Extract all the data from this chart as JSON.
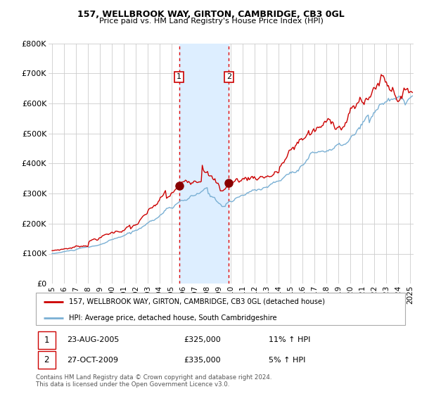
{
  "title1": "157, WELLBROOK WAY, GIRTON, CAMBRIDGE, CB3 0GL",
  "title2": "Price paid vs. HM Land Registry's House Price Index (HPI)",
  "legend_line1": "157, WELLBROOK WAY, GIRTON, CAMBRIDGE, CB3 0GL (detached house)",
  "legend_line2": "HPI: Average price, detached house, South Cambridgeshire",
  "transaction1_date": "23-AUG-2005",
  "transaction1_price": "£325,000",
  "transaction1_hpi": "11% ↑ HPI",
  "transaction2_date": "27-OCT-2009",
  "transaction2_price": "£335,000",
  "transaction2_hpi": "5% ↑ HPI",
  "footnote": "Contains HM Land Registry data © Crown copyright and database right 2024.\nThis data is licensed under the Open Government Licence v3.0.",
  "price_color": "#cc0000",
  "hpi_color": "#7ab0d4",
  "highlight_color": "#ddeeff",
  "marker1_x": 2005.65,
  "marker1_y": 325000,
  "marker2_x": 2009.82,
  "marker2_y": 335000,
  "shade_x1": 2005.65,
  "shade_x2": 2009.82,
  "ylim_min": 0,
  "ylim_max": 800000,
  "xlim_min": 1994.7,
  "xlim_max": 2025.3,
  "yticks": [
    0,
    100000,
    200000,
    300000,
    400000,
    500000,
    600000,
    700000,
    800000
  ],
  "ytick_labels": [
    "£0",
    "£100K",
    "£200K",
    "£300K",
    "£400K",
    "£500K",
    "£600K",
    "£700K",
    "£800K"
  ],
  "xticks": [
    1995,
    1996,
    1997,
    1998,
    1999,
    2000,
    2001,
    2002,
    2003,
    2004,
    2005,
    2006,
    2007,
    2008,
    2009,
    2010,
    2011,
    2012,
    2013,
    2014,
    2015,
    2016,
    2017,
    2018,
    2019,
    2020,
    2021,
    2022,
    2023,
    2024,
    2025
  ]
}
